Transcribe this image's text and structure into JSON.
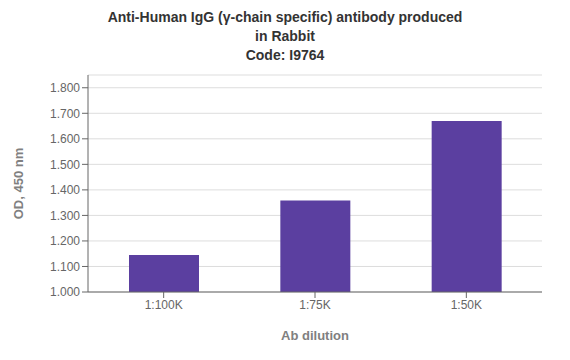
{
  "chart_data": {
    "type": "bar",
    "title": "Anti-Human IgG (γ-chain specific) antibody produced\nin Rabbit\nCode: I9764",
    "categories": [
      "1:100K",
      "1:75K",
      "1:50K"
    ],
    "values": [
      1.145,
      1.358,
      1.67
    ],
    "color": "#5B3FA0",
    "xlabel": "Ab dilution",
    "ylabel": "OD, 450 nm",
    "ylim": [
      1.0,
      1.85
    ],
    "yticks": [
      {
        "value": 1.0,
        "label": "1.000"
      },
      {
        "value": 1.1,
        "label": "1.100"
      },
      {
        "value": 1.2,
        "label": "1.200"
      },
      {
        "value": 1.3,
        "label": "1.300"
      },
      {
        "value": 1.4,
        "label": "1.400"
      },
      {
        "value": 1.5,
        "label": "1.500"
      },
      {
        "value": 1.6,
        "label": "1.600"
      },
      {
        "value": 1.7,
        "label": "1.700"
      },
      {
        "value": 1.8,
        "label": "1.800"
      }
    ],
    "grid": true
  }
}
